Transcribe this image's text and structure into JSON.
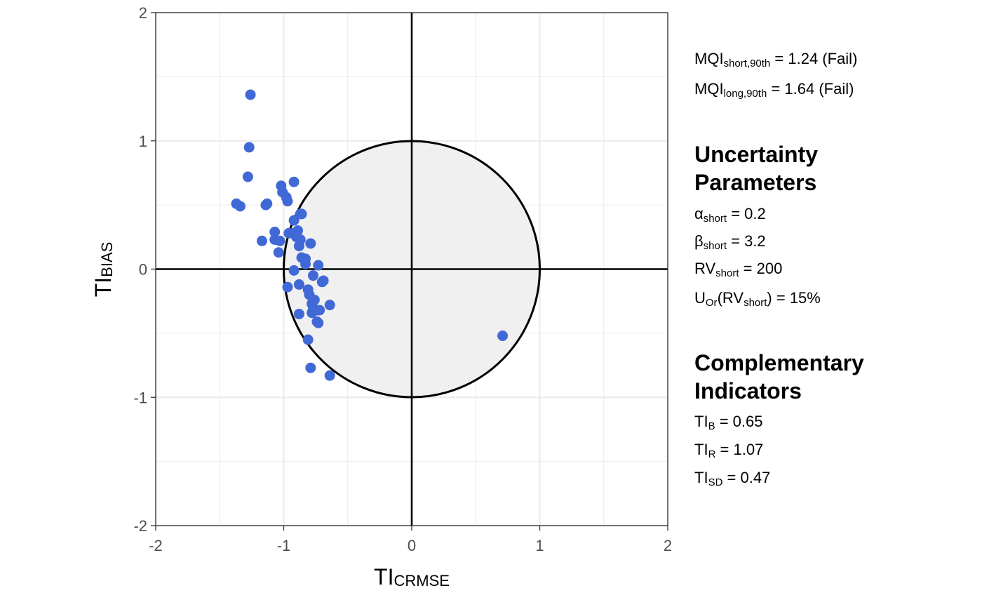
{
  "chart_data": {
    "type": "scatter",
    "title": "",
    "xlabel": {
      "main": "TI",
      "sub": "CRMSE"
    },
    "ylabel": {
      "main": "TI",
      "sub": "BIAS"
    },
    "xlim": [
      -2,
      2
    ],
    "ylim": [
      -2,
      2
    ],
    "x_ticks": [
      -2,
      -1,
      0,
      1,
      2
    ],
    "y_ticks": [
      -2,
      -1,
      0,
      1,
      2
    ],
    "x_tick_labels": [
      "-2",
      "-1",
      "0",
      "1",
      "2"
    ],
    "y_tick_labels": [
      "-2",
      "-1",
      "0",
      "1",
      "2"
    ],
    "grid": true,
    "target_circle_radius": 1,
    "point_color": "#4169d6",
    "points": [
      {
        "x": -1.26,
        "y": 1.36
      },
      {
        "x": -1.27,
        "y": 0.95
      },
      {
        "x": -1.28,
        "y": 0.72
      },
      {
        "x": -1.37,
        "y": 0.51
      },
      {
        "x": -1.34,
        "y": 0.49
      },
      {
        "x": -1.14,
        "y": 0.5
      },
      {
        "x": -1.13,
        "y": 0.51
      },
      {
        "x": -1.02,
        "y": 0.65
      },
      {
        "x": -1.01,
        "y": 0.6
      },
      {
        "x": -0.92,
        "y": 0.68
      },
      {
        "x": -0.98,
        "y": 0.56
      },
      {
        "x": -0.97,
        "y": 0.53
      },
      {
        "x": -0.87,
        "y": 0.43
      },
      {
        "x": -0.86,
        "y": 0.43
      },
      {
        "x": -0.92,
        "y": 0.38
      },
      {
        "x": -1.07,
        "y": 0.29
      },
      {
        "x": -1.07,
        "y": 0.23
      },
      {
        "x": -1.17,
        "y": 0.22
      },
      {
        "x": -1.03,
        "y": 0.22
      },
      {
        "x": -1.04,
        "y": 0.13
      },
      {
        "x": -0.96,
        "y": 0.28
      },
      {
        "x": -0.93,
        "y": 0.28
      },
      {
        "x": -0.89,
        "y": 0.3
      },
      {
        "x": -0.9,
        "y": 0.25
      },
      {
        "x": -0.87,
        "y": 0.23
      },
      {
        "x": -0.88,
        "y": 0.18
      },
      {
        "x": -0.79,
        "y": 0.2
      },
      {
        "x": -0.86,
        "y": 0.09
      },
      {
        "x": -0.83,
        "y": 0.08
      },
      {
        "x": -0.83,
        "y": 0.04
      },
      {
        "x": -0.73,
        "y": 0.03
      },
      {
        "x": -0.92,
        "y": -0.01
      },
      {
        "x": -0.77,
        "y": -0.05
      },
      {
        "x": -0.69,
        "y": -0.09
      },
      {
        "x": -0.7,
        "y": -0.1
      },
      {
        "x": -0.97,
        "y": -0.14
      },
      {
        "x": -0.88,
        "y": -0.12
      },
      {
        "x": -0.81,
        "y": -0.16
      },
      {
        "x": -0.8,
        "y": -0.2
      },
      {
        "x": -0.76,
        "y": -0.24
      },
      {
        "x": -0.78,
        "y": -0.27
      },
      {
        "x": -0.64,
        "y": -0.28
      },
      {
        "x": -0.77,
        "y": -0.31
      },
      {
        "x": -0.74,
        "y": -0.32
      },
      {
        "x": -0.72,
        "y": -0.32
      },
      {
        "x": -0.78,
        "y": -0.34
      },
      {
        "x": -0.88,
        "y": -0.35
      },
      {
        "x": -0.74,
        "y": -0.41
      },
      {
        "x": -0.73,
        "y": -0.42
      },
      {
        "x": -0.81,
        "y": -0.55
      },
      {
        "x": -0.79,
        "y": -0.77
      },
      {
        "x": -0.64,
        "y": -0.83
      },
      {
        "x": 0.71,
        "y": -0.52
      }
    ]
  },
  "mqi": {
    "short": {
      "label": "MQI",
      "sub": "short,90th",
      "value": "= 1.24 (Fail)"
    },
    "long": {
      "label": "MQI",
      "sub": "long,90th",
      "value": "= 1.64 (Fail)"
    }
  },
  "uncertainty": {
    "heading_line1": "Uncertainty",
    "heading_line2": "Parameters",
    "alpha": {
      "label": "α",
      "sub": "short",
      "value": " = 0.2"
    },
    "beta": {
      "label": "β",
      "sub": "short",
      "value": " = 3.2"
    },
    "rv": {
      "label": "RV",
      "sub": "short",
      "value": " = 200"
    },
    "uor": {
      "label": "U",
      "sub": "Or",
      "mid": "(RV",
      "sub2": "short",
      "value": ") = 15%"
    }
  },
  "complementary": {
    "heading_line1": "Complementary",
    "heading_line2": "Indicators",
    "tib": {
      "label": "TI",
      "sub": "B",
      "value": " = 0.65"
    },
    "tir": {
      "label": "TI",
      "sub": "R",
      "value": " = 1.07"
    },
    "tisd": {
      "label": "TI",
      "sub": "SD",
      "value": " = 0.47"
    }
  }
}
